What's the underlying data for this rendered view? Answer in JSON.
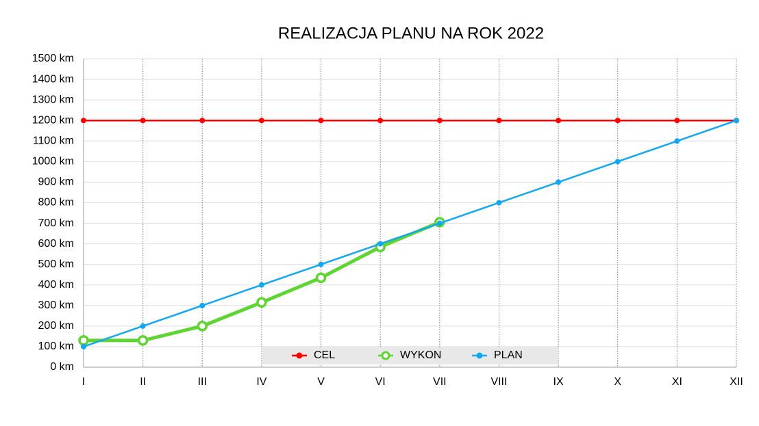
{
  "chart_data": {
    "type": "line",
    "title": "REALIZACJA PLANU NA ROK 2022",
    "categories": [
      "I",
      "II",
      "III",
      "IV",
      "V",
      "VI",
      "VII",
      "VIII",
      "IX",
      "X",
      "XI",
      "XII"
    ],
    "series": [
      {
        "name": "CEL",
        "color": "#ff0000",
        "values": [
          1200,
          1200,
          1200,
          1200,
          1200,
          1200,
          1200,
          1200,
          1200,
          1200,
          1200,
          1200
        ]
      },
      {
        "name": "WYKON",
        "color": "#5ed531",
        "values": [
          130,
          130,
          200,
          315,
          435,
          585,
          705,
          null,
          null,
          null,
          null,
          null
        ]
      },
      {
        "name": "PLAN",
        "color": "#11a7f2",
        "values": [
          100,
          200,
          300,
          400,
          500,
          600,
          700,
          800,
          900,
          1000,
          1100,
          1200
        ]
      }
    ],
    "ylim": [
      0,
      1500
    ],
    "yticks": [
      {
        "value": 0,
        "label": "0 km"
      },
      {
        "value": 100,
        "label": "100 km"
      },
      {
        "value": 200,
        "label": "200 km"
      },
      {
        "value": 300,
        "label": "300 km"
      },
      {
        "value": 400,
        "label": "400 km"
      },
      {
        "value": 500,
        "label": "500 km"
      },
      {
        "value": 600,
        "label": "600 km"
      },
      {
        "value": 700,
        "label": "700 km"
      },
      {
        "value": 800,
        "label": "800 km"
      },
      {
        "value": 900,
        "label": "900 km"
      },
      {
        "value": 1000,
        "label": "1000 km"
      },
      {
        "value": 1100,
        "label": "1100 km"
      },
      {
        "value": 1200,
        "label": "1200 km"
      },
      {
        "value": 1300,
        "label": "1300 km"
      },
      {
        "value": 1400,
        "label": "1400 km"
      },
      {
        "value": 1500,
        "label": "1500 km"
      }
    ],
    "grid": true,
    "legend": "bottom"
  }
}
